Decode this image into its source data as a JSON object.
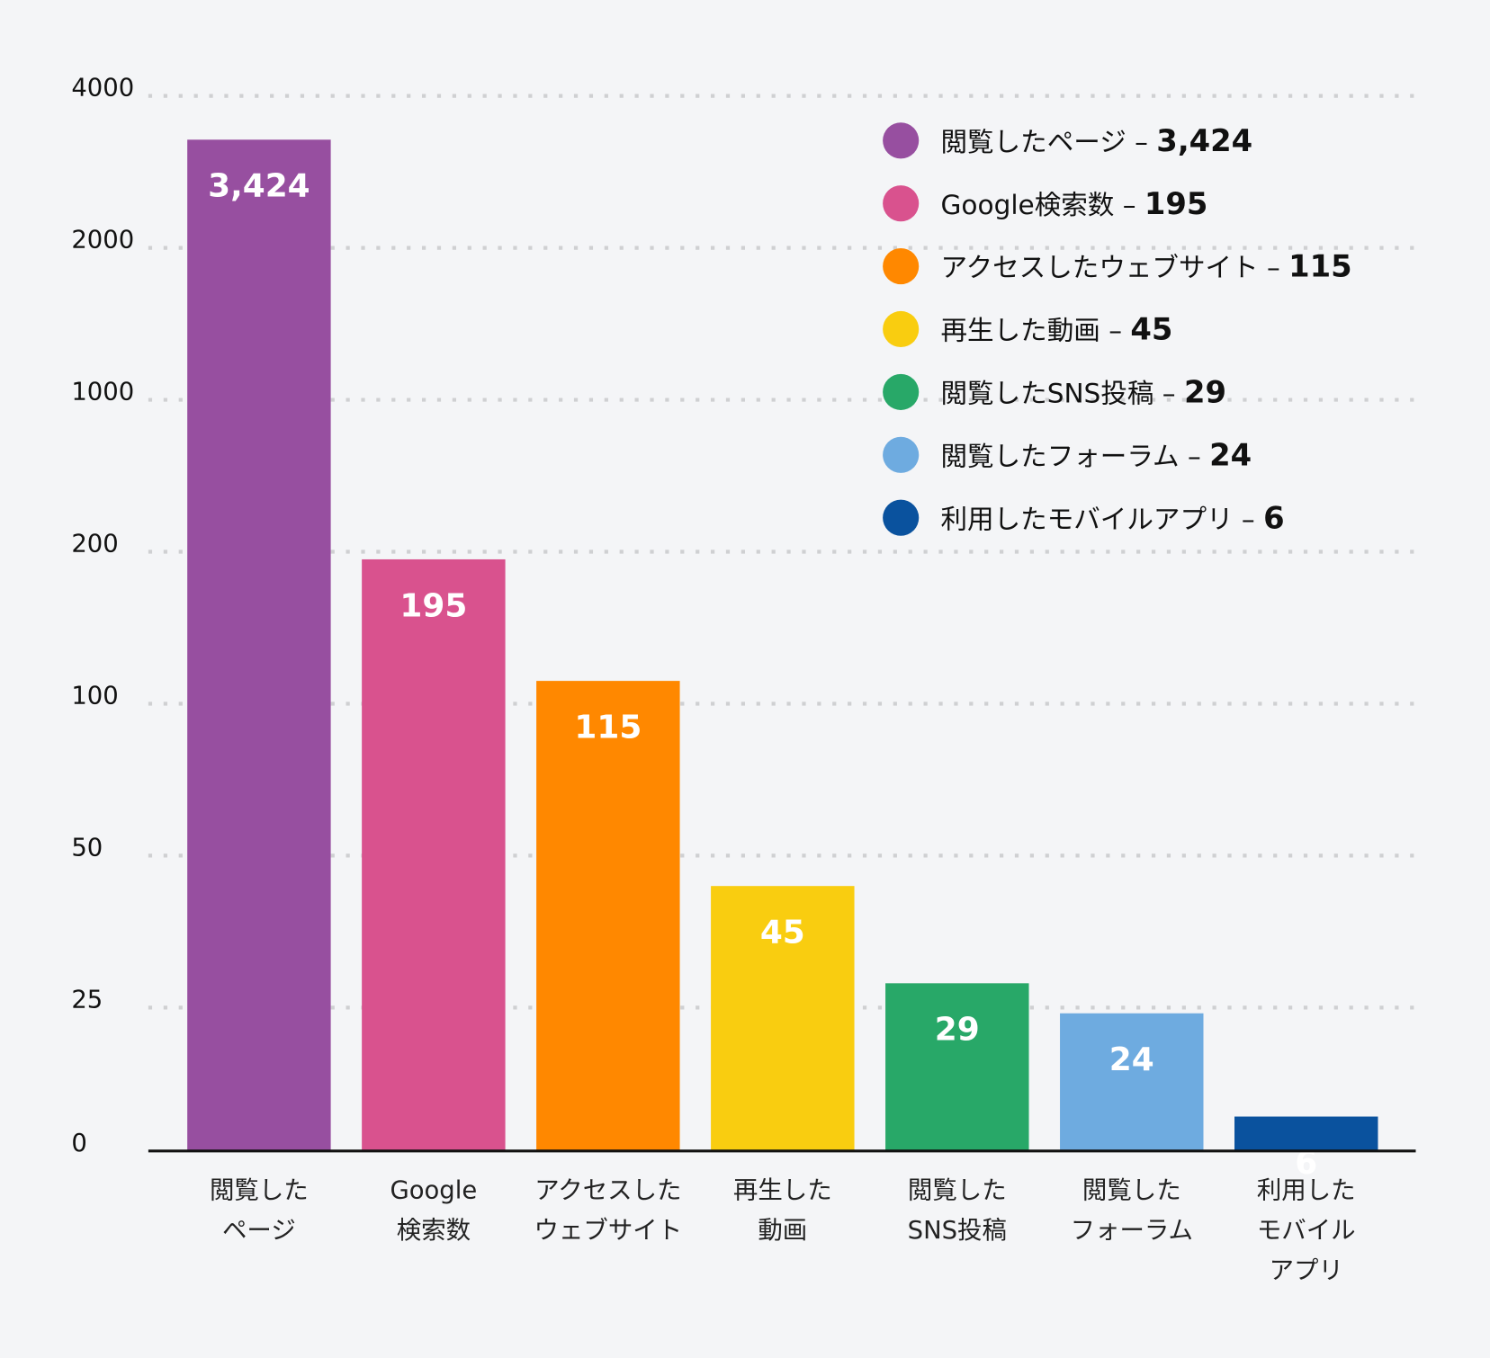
{
  "chart_data": {
    "type": "bar",
    "categories": [
      [
        "閲覧した",
        "ページ"
      ],
      [
        "Google",
        "検索数"
      ],
      [
        "アクセスした",
        "ウェブサイト"
      ],
      [
        "再生した",
        "動画"
      ],
      [
        "閲覧した",
        "SNS投稿"
      ],
      [
        "閲覧した",
        "フォーラム"
      ],
      [
        "利用した",
        "モバイル",
        "アプリ"
      ]
    ],
    "values": [
      3424,
      195,
      115,
      45,
      29,
      24,
      6
    ],
    "data_labels": [
      "3,424",
      "195",
      "115",
      "45",
      "29",
      "24",
      "6"
    ],
    "colors": [
      "#974fa0",
      "#d9528e",
      "#ff8800",
      "#f9cd10",
      "#28a868",
      "#6eabe0",
      "#0a529e"
    ],
    "yticks": [
      0,
      25,
      50,
      100,
      200,
      1000,
      2000,
      4000
    ],
    "ytick_labels": [
      "0",
      "25",
      "50",
      "100",
      "200",
      "1000",
      "2000",
      "4000"
    ],
    "y_scale": "non-linear (evenly spaced ticks)",
    "ylim": [
      0,
      4000
    ],
    "grid": "dotted horizontal",
    "legend": {
      "placement": "top-right",
      "entries": [
        {
          "label": "閲覧したページ – ",
          "value": "3,424"
        },
        {
          "label": "Google検索数 – ",
          "value": "195"
        },
        {
          "label": "アクセスしたウェブサイト – ",
          "value": "115"
        },
        {
          "label": "再生した動画 – ",
          "value": "45"
        },
        {
          "label": "閲覧したSNS投稿 – ",
          "value": "29"
        },
        {
          "label": "閲覧したフォーラム – ",
          "value": "24"
        },
        {
          "label": "利用したモバイルアプリ – ",
          "value": "6"
        }
      ]
    }
  }
}
